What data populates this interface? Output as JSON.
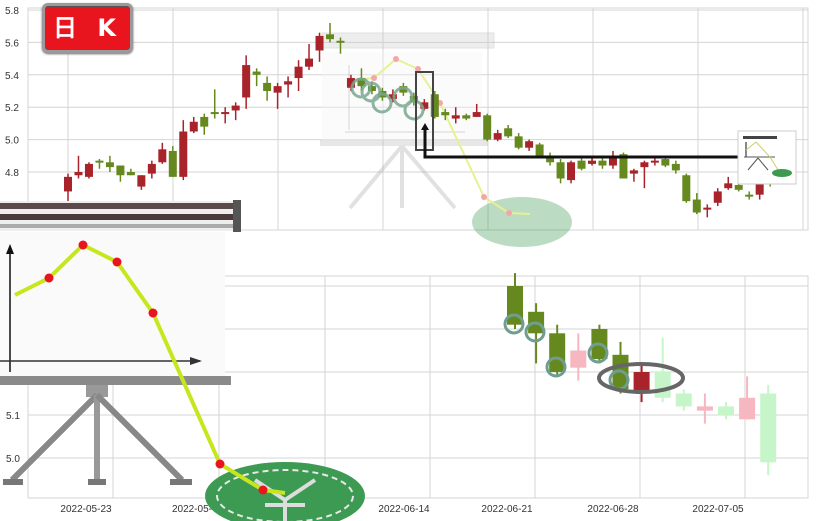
{
  "badge": {
    "label": "日 K"
  },
  "colors": {
    "up": "#a8232a",
    "down": "#66891f",
    "up_faded": "#f7b7c0",
    "down_faded": "#c6f5c9",
    "grid": "#d4d4d4",
    "line": "#c8e61e",
    "dot": "#e8141e",
    "coin": "#3c9a52"
  },
  "chart_data": [
    {
      "type": "candlestick",
      "ylim": [
        4.5,
        5.8
      ],
      "y_ticks": [
        "5.8",
        "5.6",
        "5.4",
        "5.2",
        "5.0",
        "4.8"
      ],
      "grid": true,
      "ohlc_order": [
        "open",
        "close",
        "high",
        "low"
      ],
      "candles": [
        [
          4.68,
          4.77,
          4.79,
          4.62
        ],
        [
          4.78,
          4.8,
          4.9,
          4.76
        ],
        [
          4.77,
          4.85,
          4.86,
          4.76
        ],
        [
          4.87,
          4.86,
          4.88,
          4.82
        ],
        [
          4.86,
          4.83,
          4.9,
          4.8
        ],
        [
          4.84,
          4.78,
          4.84,
          4.74
        ],
        [
          4.8,
          4.78,
          4.82,
          4.78
        ],
        [
          4.71,
          4.78,
          4.78,
          4.69
        ],
        [
          4.79,
          4.85,
          4.87,
          4.76
        ],
        [
          4.86,
          4.94,
          4.98,
          4.85
        ],
        [
          4.93,
          4.77,
          4.96,
          4.77
        ],
        [
          4.77,
          5.05,
          5.12,
          4.75
        ],
        [
          5.05,
          5.11,
          5.14,
          5.04
        ],
        [
          5.14,
          5.08,
          5.16,
          5.03
        ],
        [
          5.17,
          5.16,
          5.31,
          5.13
        ],
        [
          5.16,
          5.17,
          5.2,
          5.1
        ],
        [
          5.18,
          5.21,
          5.23,
          5.12
        ],
        [
          5.26,
          5.46,
          5.52,
          5.19
        ],
        [
          5.42,
          5.4,
          5.44,
          5.33
        ],
        [
          5.35,
          5.3,
          5.39,
          5.24
        ],
        [
          5.29,
          5.33,
          5.35,
          5.19
        ],
        [
          5.34,
          5.36,
          5.39,
          5.26
        ],
        [
          5.38,
          5.45,
          5.49,
          5.3
        ],
        [
          5.45,
          5.5,
          5.59,
          5.43
        ],
        [
          5.55,
          5.64,
          5.66,
          5.48
        ],
        [
          5.65,
          5.62,
          5.72,
          5.6
        ],
        [
          5.61,
          5.6,
          5.63,
          5.53
        ],
        [
          5.32,
          5.38,
          5.4,
          5.3
        ],
        [
          5.38,
          5.33,
          5.44,
          5.3
        ],
        [
          5.33,
          5.3,
          5.36,
          5.28
        ],
        [
          5.3,
          5.26,
          5.32,
          5.24
        ],
        [
          5.25,
          5.28,
          5.31,
          5.23
        ],
        [
          5.33,
          5.29,
          5.35,
          5.27
        ],
        [
          5.27,
          5.23,
          5.29,
          5.21
        ],
        [
          5.19,
          5.23,
          5.25,
          5.18
        ],
        [
          5.28,
          5.14,
          5.3,
          5.13
        ],
        [
          5.17,
          5.15,
          5.19,
          5.12
        ],
        [
          5.13,
          5.15,
          5.2,
          5.1
        ],
        [
          5.15,
          5.13,
          5.16,
          5.12
        ],
        [
          5.14,
          5.17,
          5.22,
          5.14
        ],
        [
          5.15,
          5.0,
          5.16,
          4.99
        ],
        [
          5.0,
          5.04,
          5.06,
          4.99
        ],
        [
          5.07,
          5.02,
          5.09,
          5.01
        ],
        [
          5.02,
          4.95,
          5.04,
          4.94
        ],
        [
          4.95,
          4.99,
          5.0,
          4.93
        ],
        [
          4.97,
          4.9,
          4.98,
          4.89
        ],
        [
          4.9,
          4.86,
          4.92,
          4.84
        ],
        [
          4.86,
          4.76,
          4.88,
          4.73
        ],
        [
          4.75,
          4.86,
          4.87,
          4.73
        ],
        [
          4.87,
          4.82,
          4.89,
          4.81
        ],
        [
          4.85,
          4.87,
          4.9,
          4.84
        ],
        [
          4.87,
          4.84,
          4.89,
          4.82
        ],
        [
          4.84,
          4.89,
          4.93,
          4.82
        ],
        [
          4.91,
          4.76,
          4.92,
          4.76
        ],
        [
          4.79,
          4.81,
          4.82,
          4.74
        ],
        [
          4.83,
          4.86,
          4.87,
          4.7
        ],
        [
          4.86,
          4.87,
          4.89,
          4.84
        ],
        [
          4.88,
          4.84,
          4.9,
          4.83
        ],
        [
          4.85,
          4.81,
          4.87,
          4.79
        ],
        [
          4.78,
          4.62,
          4.79,
          4.61
        ],
        [
          4.63,
          4.55,
          4.67,
          4.54
        ],
        [
          4.57,
          4.58,
          4.6,
          4.52
        ],
        [
          4.61,
          4.68,
          4.7,
          4.59
        ],
        [
          4.7,
          4.73,
          4.77,
          4.69
        ],
        [
          4.72,
          4.69,
          4.74,
          4.68
        ],
        [
          4.66,
          4.65,
          4.68,
          4.63
        ],
        [
          4.66,
          4.75,
          4.76,
          4.63
        ],
        [
          4.77,
          4.76,
          4.81,
          4.71
        ]
      ]
    },
    {
      "type": "candlestick",
      "y_ticks": [
        "5.1",
        "5.0"
      ],
      "grid": true,
      "x_ticks": [
        "2022-05-23",
        "2022-05-",
        "2022-06-14",
        "2022-06-21",
        "2022-06-28",
        "2022-07-05"
      ],
      "ohlc_order": [
        "open",
        "close",
        "high",
        "low"
      ],
      "candles": [
        {
          "v": [
            5.4,
            5.31,
            5.43,
            5.3
          ],
          "faded": false
        },
        {
          "v": [
            5.34,
            5.29,
            5.36,
            5.22
          ],
          "faded": false
        },
        {
          "v": [
            5.29,
            5.2,
            5.31,
            5.19
          ],
          "faded": false
        },
        {
          "v": [
            5.21,
            5.25,
            5.29,
            5.18
          ],
          "faded": true
        },
        {
          "v": [
            5.3,
            5.23,
            5.31,
            5.22
          ],
          "faded": false
        },
        {
          "v": [
            5.24,
            5.16,
            5.27,
            5.15
          ],
          "faded": false
        },
        {
          "v": [
            5.15,
            5.2,
            5.22,
            5.13
          ],
          "faded": false
        },
        {
          "v": [
            5.2,
            5.14,
            5.28,
            5.13
          ],
          "faded": true
        },
        {
          "v": [
            5.15,
            5.12,
            5.16,
            5.11
          ],
          "faded": true
        },
        {
          "v": [
            5.11,
            5.12,
            5.15,
            5.08
          ],
          "faded": true
        },
        {
          "v": [
            5.12,
            5.1,
            5.13,
            5.09
          ],
          "faded": true
        },
        {
          "v": [
            5.09,
            5.14,
            5.19,
            5.09
          ],
          "faded": true
        },
        {
          "v": [
            5.15,
            4.99,
            5.17,
            4.96
          ],
          "faded": true
        }
      ]
    }
  ]
}
